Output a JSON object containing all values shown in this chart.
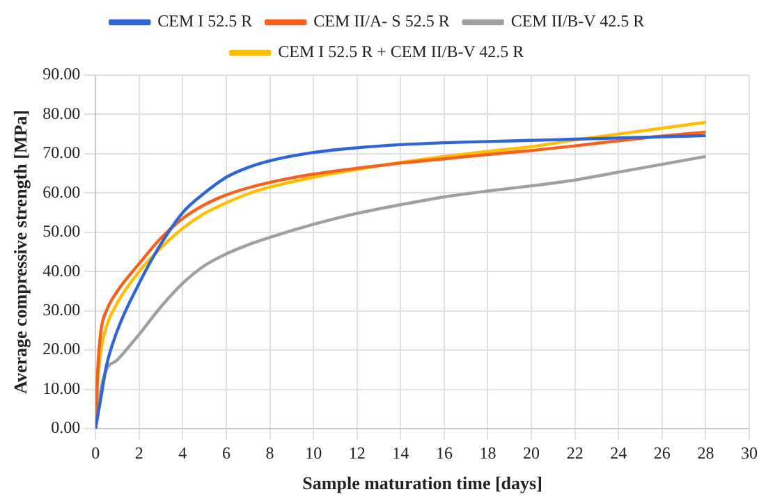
{
  "chart_data": {
    "type": "line",
    "xlabel": "Sample maturation time [days]",
    "ylabel": "Average compressive strength [MPa]",
    "xlim": [
      0,
      30
    ],
    "xticks": [
      0,
      2,
      4,
      6,
      8,
      10,
      12,
      14,
      16,
      18,
      20,
      22,
      24,
      26,
      28,
      30
    ],
    "ylim": [
      0,
      90
    ],
    "yticks": [
      {
        "value": 0,
        "label": "0.00"
      },
      {
        "value": 10,
        "label": "10.00"
      },
      {
        "value": 20,
        "label": "20.00"
      },
      {
        "value": 30,
        "label": "30.00"
      },
      {
        "value": 40,
        "label": "40.00"
      },
      {
        "value": 50,
        "label": "50.00"
      },
      {
        "value": 60,
        "label": "60.00"
      },
      {
        "value": 70,
        "label": "70.00"
      },
      {
        "value": 80,
        "label": "80.00"
      },
      {
        "value": 90,
        "label": "90.00"
      }
    ],
    "grid": true,
    "legend": "top",
    "marker": "none",
    "line_style": "solid",
    "series": [
      {
        "name": "CEM I 52.5 R",
        "color": "#2f65d4",
        "x": [
          0,
          0.25,
          0.5,
          1,
          2,
          3,
          4,
          5,
          6,
          7,
          8,
          10,
          12,
          14,
          16,
          18,
          20,
          22,
          24,
          26,
          28
        ],
        "values": [
          0,
          8,
          16,
          25,
          37,
          47,
          55,
          60,
          64,
          66.5,
          68.2,
          70.3,
          71.5,
          72.3,
          72.8,
          73.1,
          73.4,
          73.7,
          74,
          74.3,
          74.6
        ]
      },
      {
        "name": "CEM II/A- S 52.5 R",
        "color": "#f4621d",
        "x": [
          0,
          0.1,
          0.25,
          0.5,
          1,
          2,
          3,
          4,
          5,
          6,
          7,
          8,
          10,
          12,
          14,
          16,
          18,
          20,
          22,
          24,
          26,
          28
        ],
        "values": [
          0,
          15,
          25,
          30,
          35,
          42,
          48.5,
          53.5,
          57,
          59.5,
          61.3,
          62.7,
          64.8,
          66.3,
          67.6,
          68.7,
          69.8,
          70.8,
          72,
          73.3,
          74.5,
          75.5
        ]
      },
      {
        "name": "CEM II/B-V 42.5 R",
        "color": "#a0a0a0",
        "x": [
          0,
          0.25,
          0.5,
          1,
          2,
          3,
          4,
          5,
          6,
          7,
          8,
          10,
          12,
          14,
          16,
          18,
          20,
          22,
          24,
          26,
          28
        ],
        "values": [
          0,
          10,
          15,
          17.5,
          24,
          31,
          37,
          41.5,
          44.5,
          46.8,
          48.7,
          52,
          54.8,
          57,
          59,
          60.5,
          61.8,
          63.3,
          65.3,
          67.3,
          69.3
        ]
      },
      {
        "name": "CEM I 52.5 R + CEM II/B-V 42.5 R",
        "color": "#ffbf00",
        "x": [
          0,
          0.1,
          0.25,
          0.5,
          1,
          2,
          3,
          4,
          5,
          6,
          7,
          8,
          10,
          12,
          14,
          16,
          18,
          20,
          22,
          24,
          26,
          28
        ],
        "values": [
          0,
          12,
          20,
          26,
          32,
          40,
          46,
          51,
          54.8,
          57.5,
          59.8,
          61.5,
          64,
          66,
          67.8,
          69.3,
          70.6,
          71.8,
          73.5,
          75,
          76.5,
          78
        ]
      }
    ]
  }
}
